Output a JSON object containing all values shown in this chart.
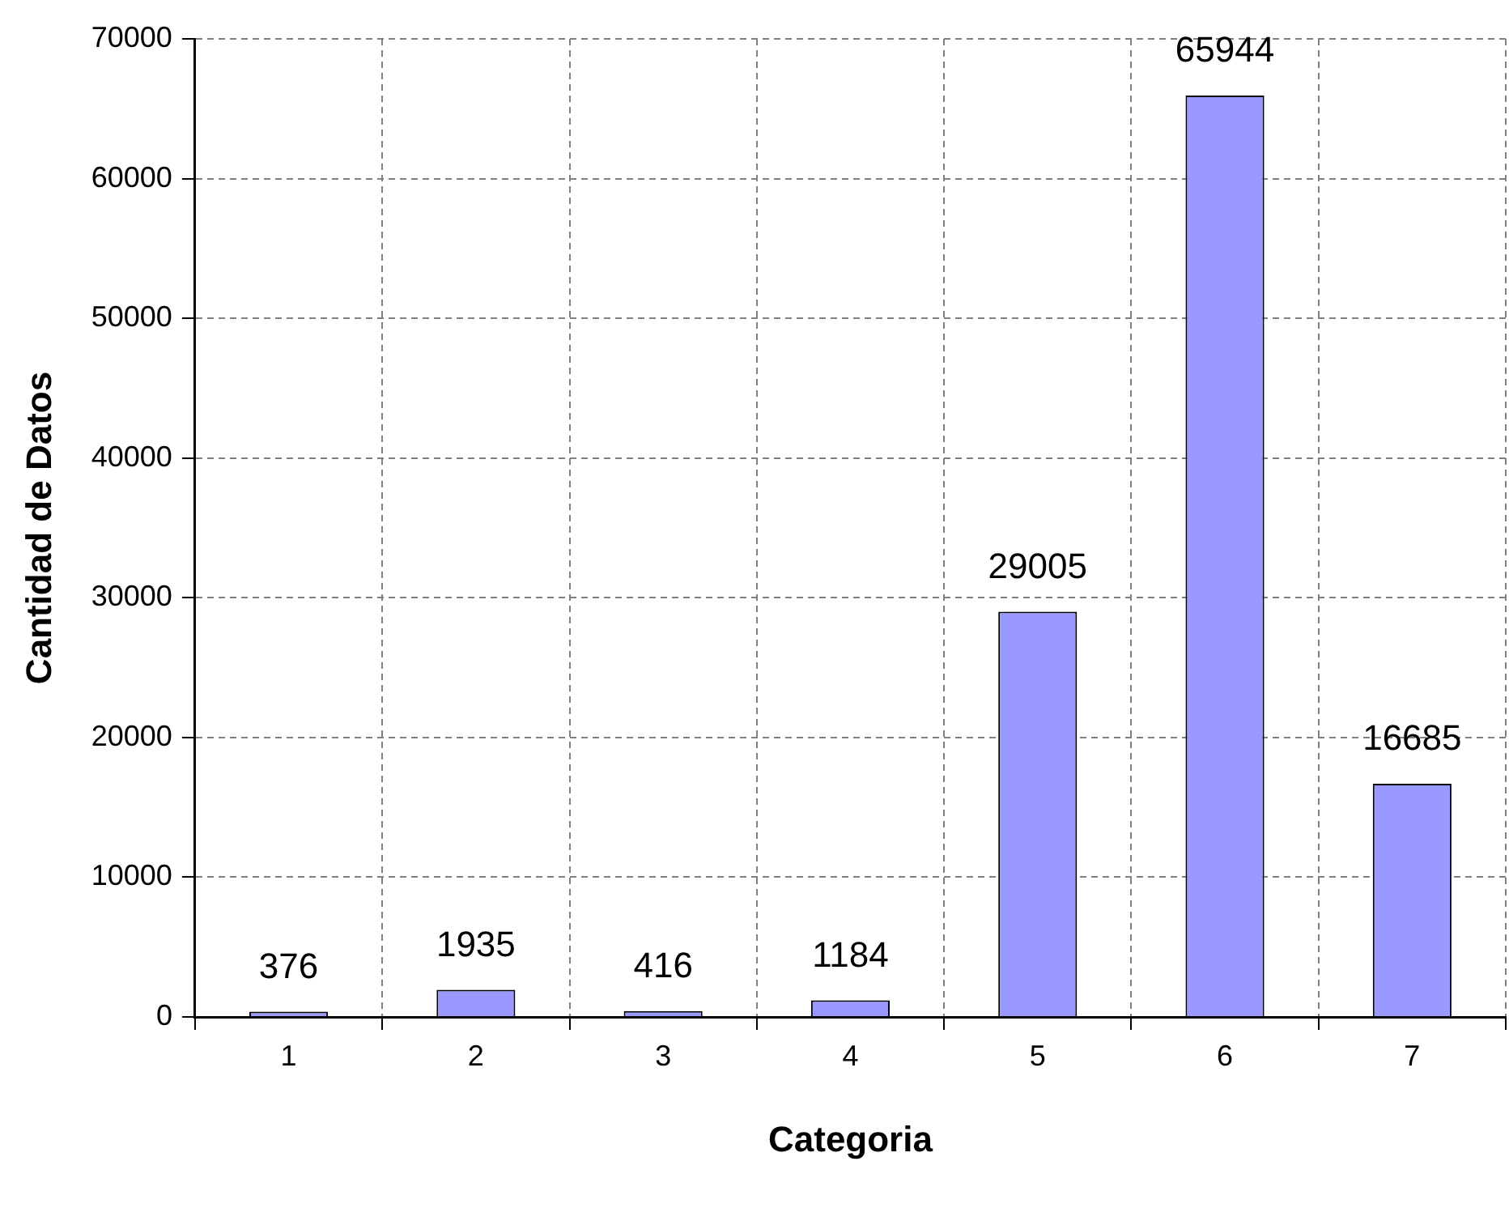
{
  "chart_data": {
    "type": "bar",
    "xlabel": "Categoria",
    "ylabel": "Cantidad de Datos",
    "categories": [
      "1",
      "2",
      "3",
      "4",
      "5",
      "6",
      "7"
    ],
    "values": [
      376,
      1935,
      416,
      1184,
      29005,
      65944,
      16685
    ],
    "color": "#9999ff",
    "ylim": [
      0,
      70000
    ],
    "yticks": [
      0,
      10000,
      20000,
      30000,
      40000,
      50000,
      60000,
      70000
    ],
    "grid": true,
    "data_labels": true,
    "legend": false
  }
}
